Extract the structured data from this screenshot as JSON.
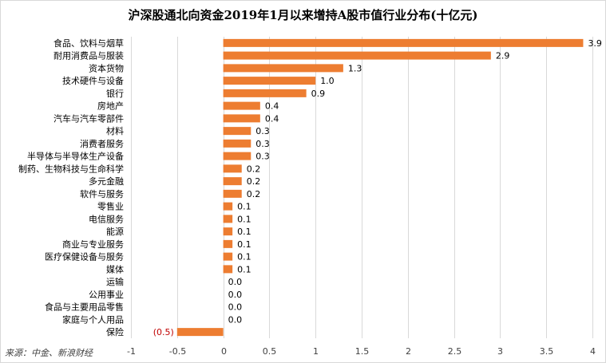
{
  "chart_data": {
    "type": "bar",
    "orientation": "horizontal",
    "title": "沪深股通北向资金2019年1月以来增持A股市值行业分布(十亿元)",
    "source": "来源：中金、新浪财经",
    "categories": [
      "食品、饮料与烟草",
      "耐用消费品与服装",
      "资本货物",
      "技术硬件与设备",
      "银行",
      "房地产",
      "汽车与汽车零部件",
      "材料",
      "消费者服务",
      "半导体与半导体生产设备",
      "制药、生物科技与生命科学",
      "多元金融",
      "软件与服务",
      "零售业",
      "电信服务",
      "能源",
      "商业与专业服务",
      "医疗保健设备与服务",
      "媒体",
      "运输",
      "公用事业",
      "食品与主要用品零售",
      "家庭与个人用品",
      "保险"
    ],
    "values": [
      3.9,
      2.9,
      1.3,
      1.0,
      0.9,
      0.4,
      0.4,
      0.3,
      0.3,
      0.3,
      0.2,
      0.2,
      0.2,
      0.1,
      0.1,
      0.1,
      0.1,
      0.1,
      0.1,
      0.0,
      0.0,
      0.0,
      0.0,
      -0.5
    ],
    "value_labels": [
      "3.9",
      "2.9",
      "1.3",
      "1.0",
      "0.9",
      "0.4",
      "0.4",
      "0.3",
      "0.3",
      "0.3",
      "0.2",
      "0.2",
      "0.2",
      "0.1",
      "0.1",
      "0.1",
      "0.1",
      "0.1",
      "0.1",
      "0.0",
      "0.0",
      "0.0",
      "0.0",
      "(0.5)"
    ],
    "xlim": [
      -1,
      4
    ],
    "xticks": [
      -1,
      -0.5,
      0,
      0.5,
      1,
      1.5,
      2,
      2.5,
      3,
      3.5,
      4
    ],
    "xtick_labels": [
      "-1",
      "-0.5",
      "0",
      "0.5",
      "1",
      "1.5",
      "2",
      "2.5",
      "3",
      "3.5",
      "4"
    ],
    "grid": "vertical",
    "colors": {
      "bar": "#ed7d31",
      "grid": "#d9d9d9",
      "negative_label": "#c00000",
      "text": "#000000"
    }
  }
}
